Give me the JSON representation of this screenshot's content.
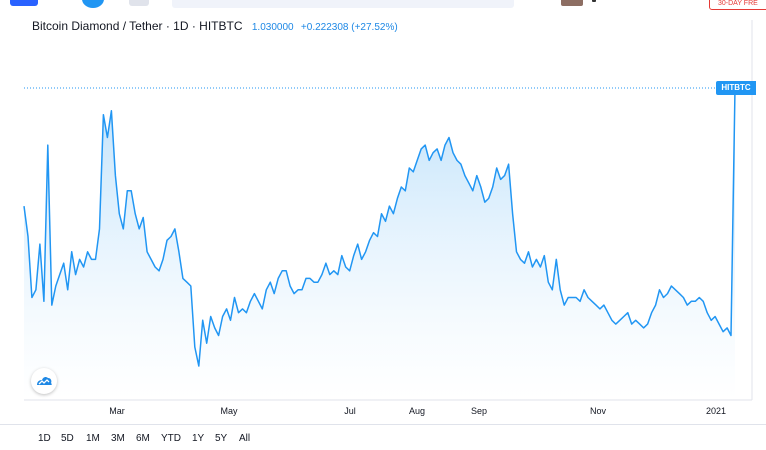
{
  "top": {
    "trial_badge": "30-DAY FRE"
  },
  "legend": {
    "title": "Bitcoin Diamond / Tether · 1D · HITBTC",
    "price": "1.030000",
    "change": "+0.222308 (+27.52%)"
  },
  "exchange_label": "HITBTC",
  "colors": {
    "line": "#2196f3",
    "fill_top": "#b3dcfa",
    "fill_bottom": "#ffffff",
    "price_line": "#2196f3"
  },
  "range_buttons": [
    "1D",
    "5D",
    "1M",
    "3M",
    "6M",
    "YTD",
    "1Y",
    "5Y",
    "All"
  ],
  "chart_data": {
    "type": "area",
    "x_ticks": [
      "Mar",
      "May",
      "Jul",
      "Aug",
      "Sep",
      "Nov",
      "2021"
    ],
    "series": [
      {
        "values": [
          0.72,
          0.64,
          0.48,
          0.5,
          0.62,
          0.47,
          0.88,
          0.46,
          0.51,
          0.54,
          0.57,
          0.5,
          0.6,
          0.54,
          0.58,
          0.56,
          0.6,
          0.58,
          0.58,
          0.66,
          0.96,
          0.9,
          0.97,
          0.8,
          0.7,
          0.66,
          0.76,
          0.76,
          0.7,
          0.66,
          0.69,
          0.6,
          0.58,
          0.56,
          0.55,
          0.58,
          0.63,
          0.64,
          0.66,
          0.6,
          0.53,
          0.52,
          0.51,
          0.35,
          0.3,
          0.42,
          0.36,
          0.43,
          0.4,
          0.38,
          0.43,
          0.45,
          0.42,
          0.48,
          0.44,
          0.45,
          0.44,
          0.47,
          0.49,
          0.47,
          0.45,
          0.5,
          0.52,
          0.49,
          0.53,
          0.55,
          0.55,
          0.51,
          0.49,
          0.5,
          0.5,
          0.53,
          0.53,
          0.52,
          0.52,
          0.54,
          0.57,
          0.54,
          0.55,
          0.54,
          0.59,
          0.56,
          0.55,
          0.59,
          0.62,
          0.58,
          0.6,
          0.63,
          0.65,
          0.64,
          0.7,
          0.68,
          0.72,
          0.7,
          0.74,
          0.77,
          0.76,
          0.82,
          0.81,
          0.84,
          0.87,
          0.88,
          0.84,
          0.86,
          0.87,
          0.84,
          0.88,
          0.9,
          0.86,
          0.84,
          0.83,
          0.8,
          0.78,
          0.76,
          0.8,
          0.77,
          0.73,
          0.74,
          0.77,
          0.82,
          0.79,
          0.8,
          0.83,
          0.7,
          0.6,
          0.58,
          0.57,
          0.6,
          0.56,
          0.58,
          0.56,
          0.59,
          0.52,
          0.5,
          0.58,
          0.5,
          0.46,
          0.48,
          0.48,
          0.48,
          0.47,
          0.5,
          0.48,
          0.47,
          0.46,
          0.45,
          0.46,
          0.44,
          0.42,
          0.41,
          0.42,
          0.43,
          0.44,
          0.41,
          0.42,
          0.41,
          0.4,
          0.41,
          0.44,
          0.46,
          0.5,
          0.48,
          0.49,
          0.51,
          0.5,
          0.49,
          0.48,
          0.46,
          0.47,
          0.47,
          0.48,
          0.47,
          0.44,
          0.42,
          0.43,
          0.41,
          0.39,
          0.4,
          0.38,
          1.03
        ]
      }
    ]
  }
}
